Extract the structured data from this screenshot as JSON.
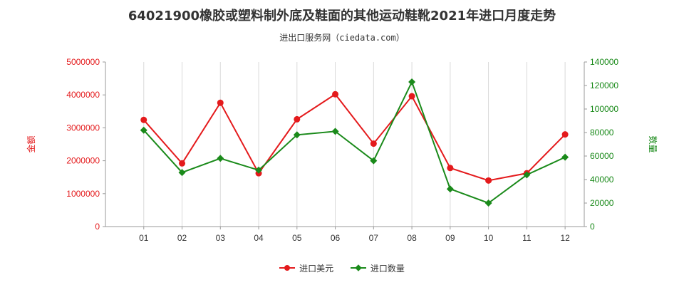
{
  "title": "64021900橡胶或塑料制外底及鞋面的其他运动鞋靴2021年进口月度走势",
  "subtitle": "进出口服务网（ciedata.com）",
  "watermark": "进出口服务网（ciedata.com）",
  "colors": {
    "amount": "#e41a1c",
    "quantity": "#1a8a1a",
    "axis_left": "#e41a1c",
    "axis_right": "#1a8a1a",
    "grid": "#d9d9d9"
  },
  "chart_data": {
    "type": "line",
    "categories": [
      "01",
      "02",
      "03",
      "04",
      "05",
      "06",
      "07",
      "08",
      "09",
      "10",
      "11",
      "12"
    ],
    "series": [
      {
        "name": "进口美元",
        "axis": "left",
        "marker": "circle",
        "values": [
          3240000,
          1920000,
          3760000,
          1620000,
          3260000,
          4020000,
          2520000,
          3960000,
          1780000,
          1400000,
          1620000,
          2800000
        ]
      },
      {
        "name": "进口数量",
        "axis": "right",
        "marker": "diamond",
        "values": [
          82000,
          46000,
          58000,
          48000,
          78000,
          81000,
          56000,
          123000,
          32000,
          20000,
          44000,
          59000
        ]
      }
    ],
    "ylabel_left": "金额",
    "ylabel_right": "数量",
    "ylim_left": [
      0,
      5000000
    ],
    "ylim_right": [
      0,
      140000
    ],
    "yticks_left": [
      0,
      1000000,
      2000000,
      3000000,
      4000000,
      5000000
    ],
    "yticks_right": [
      0,
      20000,
      40000,
      60000,
      80000,
      100000,
      120000,
      140000
    ],
    "grid": "vertical",
    "legend": "bottom-center"
  }
}
